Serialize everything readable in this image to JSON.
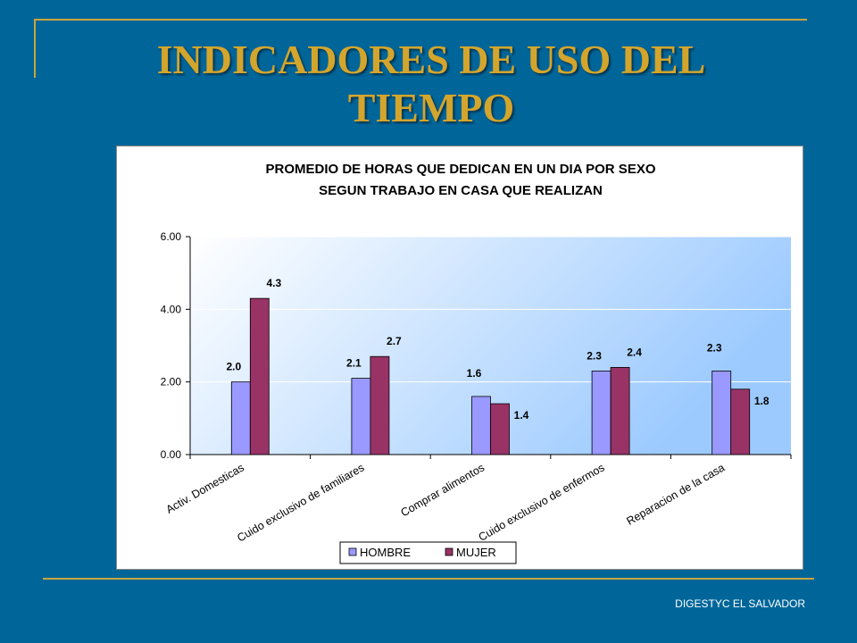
{
  "slide": {
    "title_line1": "INDICADORES DE USO DEL",
    "title_line2": "TIEMPO",
    "footer": "DIGESTYC EL SALVADOR"
  },
  "colors": {
    "background": "#006699",
    "accent_gold": "#CCA43A",
    "hombre": "#9999FF",
    "mujer": "#993366"
  },
  "chart_data": {
    "type": "bar",
    "title_line1": "PROMEDIO DE HORAS QUE DEDICAN EN UN DIA POR SEXO",
    "title_line2": "SEGUN TRABAJO EN CASA QUE REALIZAN",
    "categories": [
      "Activ. Domesticas",
      "Cuido exclusivo de familiares",
      "Comprar alimentos",
      "Cuido exclusivo de enfermos",
      "Reparacion de la casa"
    ],
    "series": [
      {
        "name": "HOMBRE",
        "values": [
          2.0,
          2.1,
          1.6,
          2.3,
          2.3
        ],
        "labels": [
          "2.0",
          "2.1",
          "1.6",
          "2.3",
          "2.3"
        ],
        "color": "#9999FF"
      },
      {
        "name": "MUJER",
        "values": [
          4.3,
          2.7,
          1.4,
          2.4,
          1.8
        ],
        "labels": [
          "4.3",
          "2.7",
          "1.4",
          "2.4",
          "1.8"
        ],
        "color": "#993366"
      }
    ],
    "yticks": [
      "0.00",
      "2.00",
      "4.00",
      "6.00"
    ],
    "ylim": [
      0,
      6
    ],
    "grid": true,
    "legend": "bottom"
  }
}
